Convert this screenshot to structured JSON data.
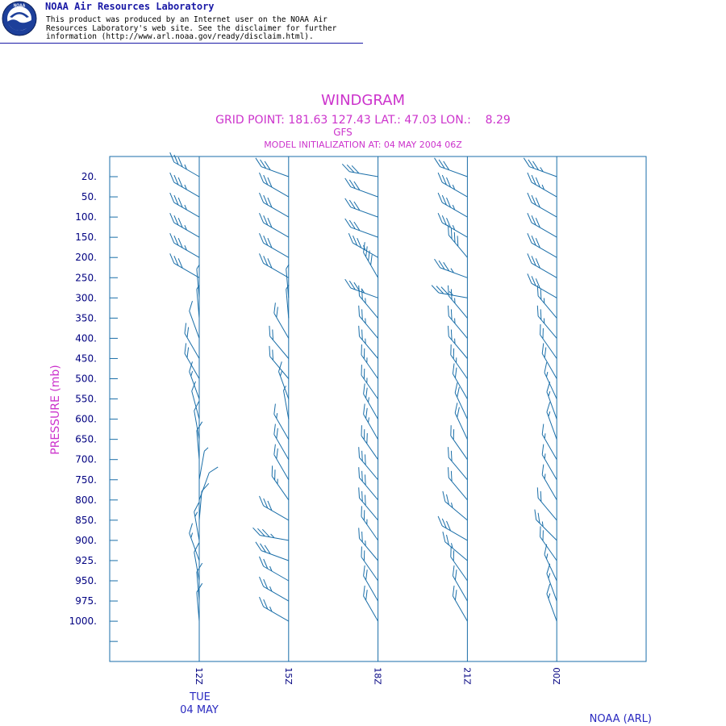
{
  "banner": {
    "org": "NOAA Air Resources Laboratory",
    "logo_text": "NOAA",
    "disclaimer": [
      "This product was produced by an Internet user on the NOAA Air",
      "Resources Laboratory's web site.  See the disclaimer for further",
      "information (http://www.arl.noaa.gov/ready/disclaim.html)."
    ]
  },
  "chart_data": {
    "type": "windgram",
    "title": "WINDGRAM",
    "subtitle": "GRID POINT: 181.63 127.43 LAT.: 47.03 LON.:    8.29",
    "model": "GFS",
    "init_line": "MODEL INITIALIZATION AT: 04 MAY 2004 06Z",
    "ylabel": "PRESSURE (mb)",
    "footer": "NOAA (ARL)",
    "pressure_levels": [
      "20.",
      "50.",
      "100.",
      "150.",
      "200.",
      "250.",
      "300.",
      "350.",
      "400.",
      "450.",
      "500.",
      "550.",
      "600.",
      "650.",
      "700.",
      "750.",
      "800.",
      "850.",
      "900.",
      "925.",
      "950.",
      "975.",
      "1000."
    ],
    "times": [
      "12Z",
      "15Z",
      "18Z",
      "21Z",
      "00Z"
    ],
    "date_label": [
      "TUE",
      "04 MAY"
    ],
    "wind_direction_deg": [
      [
        300,
        300,
        300,
        300,
        300,
        300,
        355,
        355,
        340,
        330,
        330,
        340,
        345,
        350,
        355,
        10,
        20,
        5,
        350,
        340,
        350,
        355,
        355
      ],
      [
        290,
        300,
        300,
        300,
        300,
        300,
        355,
        355,
        330,
        320,
        320,
        340,
        350,
        330,
        330,
        330,
        325,
        300,
        280,
        290,
        300,
        300,
        300
      ],
      [
        280,
        290,
        290,
        290,
        300,
        330,
        290,
        320,
        320,
        320,
        325,
        325,
        330,
        330,
        325,
        320,
        320,
        320,
        325,
        320,
        325,
        330,
        330
      ],
      [
        290,
        300,
        300,
        300,
        320,
        290,
        280,
        320,
        320,
        320,
        325,
        330,
        335,
        335,
        325,
        320,
        320,
        310,
        300,
        310,
        325,
        330,
        330
      ],
      [
        290,
        300,
        300,
        300,
        300,
        300,
        300,
        320,
        320,
        325,
        330,
        335,
        340,
        340,
        330,
        330,
        330,
        320,
        315,
        325,
        335,
        340,
        340
      ]
    ],
    "wind_speed_kt": [
      [
        35,
        35,
        35,
        35,
        35,
        30,
        5,
        5,
        10,
        20,
        20,
        15,
        10,
        10,
        10,
        5,
        10,
        10,
        15,
        15,
        10,
        10,
        10
      ],
      [
        30,
        30,
        30,
        30,
        30,
        30,
        5,
        5,
        20,
        20,
        20,
        15,
        5,
        15,
        20,
        20,
        25,
        30,
        35,
        30,
        25,
        25,
        25
      ],
      [
        30,
        30,
        30,
        30,
        35,
        40,
        35,
        25,
        25,
        25,
        25,
        25,
        25,
        25,
        30,
        30,
        30,
        30,
        25,
        25,
        20,
        20,
        20
      ],
      [
        30,
        35,
        35,
        35,
        40,
        35,
        35,
        25,
        25,
        25,
        25,
        20,
        20,
        20,
        20,
        20,
        20,
        25,
        30,
        25,
        20,
        20,
        20
      ],
      [
        35,
        35,
        30,
        30,
        30,
        30,
        30,
        25,
        25,
        20,
        20,
        15,
        15,
        15,
        15,
        15,
        15,
        20,
        25,
        20,
        15,
        15,
        15
      ]
    ]
  }
}
